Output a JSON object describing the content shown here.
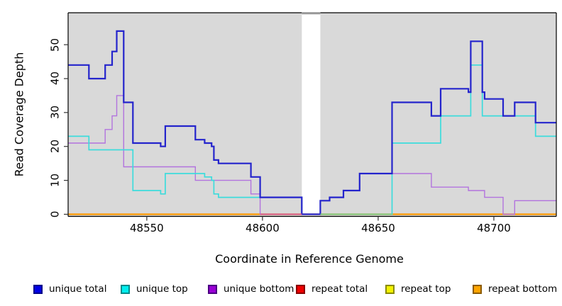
{
  "figure_type": "R coverage step plot",
  "axes": {
    "x_title": "Coordinate in Reference Genome",
    "y_title": "Read Coverage Depth",
    "x_ticks": [
      48550,
      48600,
      48650,
      48700
    ],
    "y_ticks": [
      0,
      10,
      20,
      30,
      40,
      50
    ]
  },
  "legend": {
    "items": [
      {
        "label": "unique total",
        "fill": "#0000e6",
        "border": "#00008b"
      },
      {
        "label": "unique top",
        "fill": "#00eeee",
        "border": "#008b8b"
      },
      {
        "label": "unique bottom",
        "fill": "#9a00d6",
        "border": "#4b0082"
      },
      {
        "label": "repeat total",
        "fill": "#ee0000",
        "border": "#8b0000"
      },
      {
        "label": "repeat top",
        "fill": "#f2f200",
        "border": "#8b8b00"
      },
      {
        "label": "repeat bottom",
        "fill": "#ffa500",
        "border": "#8b5a00"
      }
    ]
  },
  "chart_data": {
    "type": "line",
    "subtype": "step-after",
    "xlabel": "Coordinate in Reference Genome",
    "ylabel": "Read Coverage Depth",
    "xlim": [
      48516,
      48727
    ],
    "ylim": [
      0,
      59
    ],
    "x_ticks": [
      48550,
      48600,
      48650,
      48700
    ],
    "y_ticks": [
      0,
      10,
      20,
      30,
      40,
      50
    ],
    "panel_bg": "#d9d9d9",
    "gap_region": {
      "from": 48617,
      "to": 48625,
      "color": "#ffffff",
      "top_bar_color": "#999999"
    },
    "series": [
      {
        "name": "repeat total",
        "color": "#dd2222",
        "width": 1.2,
        "steps": [
          [
            48516,
            0
          ]
        ]
      },
      {
        "name": "repeat top",
        "color": "#e6e600",
        "width": 1.6,
        "steps": [
          [
            48516,
            0
          ]
        ]
      },
      {
        "name": "repeat bottom",
        "color": "#ff9900",
        "width": 2.2,
        "steps": [
          [
            48516,
            0
          ]
        ]
      },
      {
        "name": "unique bottom",
        "color": "#b273de",
        "width": 1.4,
        "steps": [
          [
            48516,
            21
          ],
          [
            48532,
            25
          ],
          [
            48535,
            29
          ],
          [
            48537,
            35
          ],
          [
            48540,
            14
          ],
          [
            48571,
            10
          ],
          [
            48595,
            6
          ],
          [
            48599,
            0
          ],
          [
            48625,
            4
          ],
          [
            48629,
            5
          ],
          [
            48635,
            7
          ],
          [
            48642,
            12
          ],
          [
            48673,
            8
          ],
          [
            48689,
            7
          ],
          [
            48696,
            5
          ],
          [
            48704,
            0
          ],
          [
            48709,
            4
          ]
        ]
      },
      {
        "name": "unique top",
        "color": "#3cdcdc",
        "width": 1.7,
        "steps": [
          [
            48516,
            23
          ],
          [
            48525,
            19
          ],
          [
            48544,
            7
          ],
          [
            48556,
            6
          ],
          [
            48558,
            12
          ],
          [
            48575,
            11
          ],
          [
            48578,
            10
          ],
          [
            48579,
            6
          ],
          [
            48581,
            5
          ],
          [
            48617,
            0
          ],
          [
            48656,
            21
          ],
          [
            48677,
            29
          ],
          [
            48690,
            44
          ],
          [
            48695,
            29
          ],
          [
            48718,
            23
          ]
        ]
      },
      {
        "name": "unique total",
        "color": "#2424cc",
        "width": 2.2,
        "steps": [
          [
            48516,
            44
          ],
          [
            48525,
            40
          ],
          [
            48532,
            44
          ],
          [
            48535,
            48
          ],
          [
            48537,
            54
          ],
          [
            48540,
            33
          ],
          [
            48544,
            21
          ],
          [
            48556,
            20
          ],
          [
            48558,
            26
          ],
          [
            48571,
            22
          ],
          [
            48575,
            21
          ],
          [
            48578,
            20
          ],
          [
            48579,
            16
          ],
          [
            48581,
            15
          ],
          [
            48595,
            11
          ],
          [
            48599,
            5
          ],
          [
            48617,
            0
          ],
          [
            48625,
            4
          ],
          [
            48629,
            5
          ],
          [
            48635,
            7
          ],
          [
            48642,
            12
          ],
          [
            48656,
            33
          ],
          [
            48673,
            29
          ],
          [
            48677,
            37
          ],
          [
            48689,
            36
          ],
          [
            48690,
            51
          ],
          [
            48695,
            36
          ],
          [
            48696,
            34
          ],
          [
            48704,
            29
          ],
          [
            48709,
            33
          ],
          [
            48718,
            27
          ]
        ]
      }
    ],
    "baseline_overlays": [
      {
        "from": 48599,
        "to": 48617,
        "color": "#d4548c",
        "note": "unique-bottom over repeat-bottom at depth 0"
      },
      {
        "from": 48625,
        "to": 48656,
        "color": "#7dc87d",
        "note": "unique-top over repeat-bottom at depth 0"
      }
    ]
  }
}
